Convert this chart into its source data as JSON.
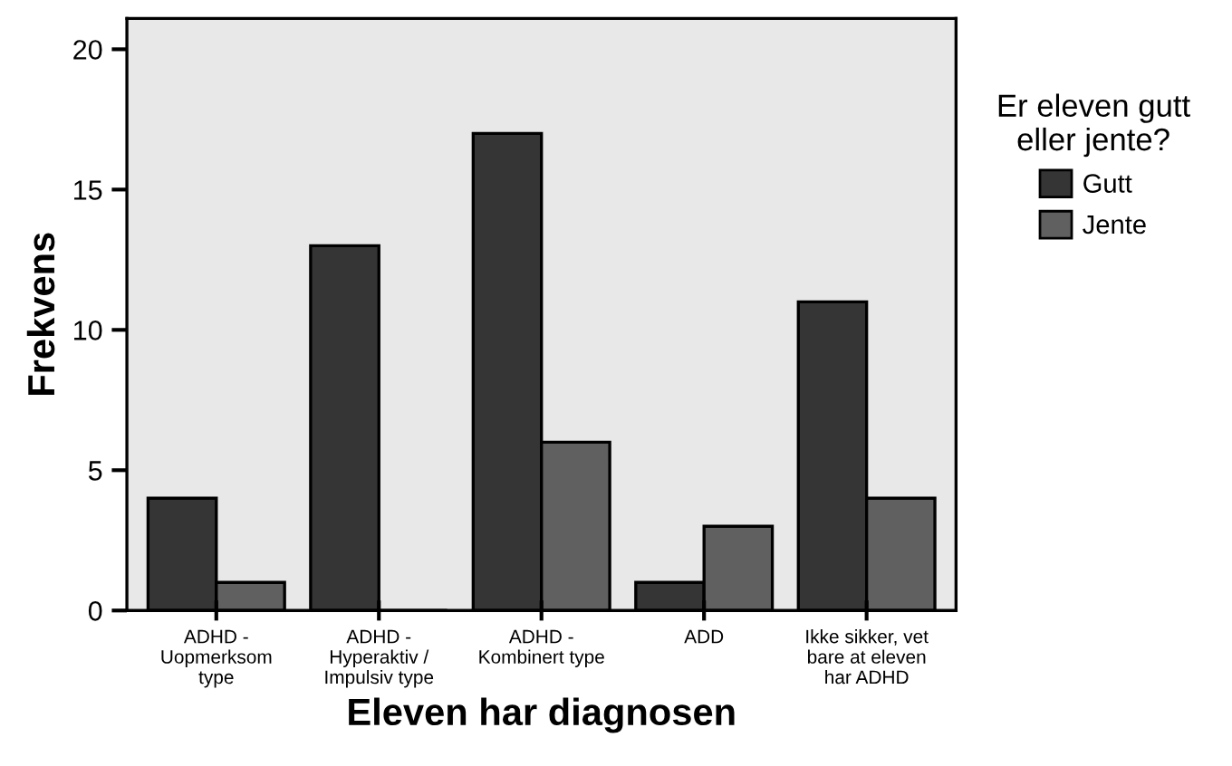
{
  "chart_data": {
    "type": "bar",
    "xlabel": "Eleven har diagnosen",
    "ylabel": "Frekvens",
    "legend_title": "Er eleven gutt\neller jente?",
    "categories": [
      "ADHD -\nUopmerksom\ntype",
      "ADHD -\nHyperaktiv /\nImpulsiv type",
      "ADHD -\nKombinert type",
      "ADD",
      "Ikke sikker, vet\nbare at eleven\nhar ADHD"
    ],
    "series": [
      {
        "name": "Gutt",
        "color": "#353535",
        "values": [
          4,
          13,
          17,
          1,
          11
        ]
      },
      {
        "name": "Jente",
        "color": "#606060",
        "values": [
          1,
          0,
          6,
          3,
          4
        ]
      }
    ],
    "ylim": [
      0,
      21.1
    ],
    "yticks": [
      0,
      5,
      10,
      15,
      20
    ],
    "grid": false,
    "legend": "right"
  }
}
